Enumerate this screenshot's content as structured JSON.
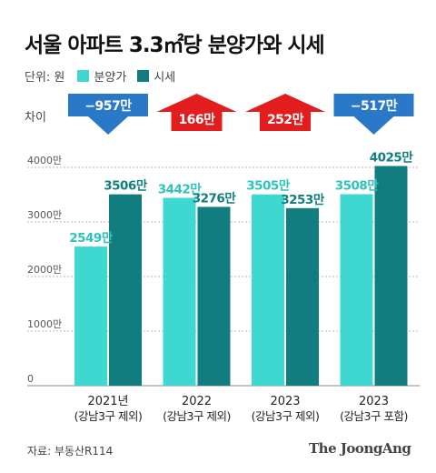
{
  "title": "서울 아파트 3.3㎡당 분양가와 시세",
  "legend": {
    "unit": "단위: 원",
    "items": [
      {
        "name": "분양가",
        "color": "#3fd8d0"
      },
      {
        "name": "시세",
        "color": "#127d7f"
      }
    ]
  },
  "diff_label": "차이",
  "source": "자료: 부동산R114",
  "logo": "The JoongAng",
  "chart_data": {
    "type": "bar",
    "ylim": [
      0,
      4600
    ],
    "yticks": [
      {
        "value": 0,
        "label": "0"
      },
      {
        "value": 1000,
        "label": "1000만"
      },
      {
        "value": 2000,
        "label": "2000만"
      },
      {
        "value": 3000,
        "label": "3000만"
      },
      {
        "value": 4000,
        "label": "4000만"
      }
    ],
    "categories": [
      {
        "line1": "2021년",
        "line2": "(강남3구 제외)"
      },
      {
        "line1": "2022",
        "line2": "(강남3구 제외)"
      },
      {
        "line1": "2023",
        "line2": "(강남3구 제외)"
      },
      {
        "line1": "2023",
        "line2": "(강남3구 포함)"
      }
    ],
    "series": [
      {
        "name": "분양가",
        "color": "#3fd8d0",
        "label_color": "#2cc3bb",
        "values": [
          2549,
          3442,
          3505,
          3508
        ],
        "labels": [
          "2549만",
          "3442만",
          "3505만",
          "3508만"
        ]
      },
      {
        "name": "시세",
        "color": "#127d7f",
        "label_color": "#127d7f",
        "values": [
          3506,
          3276,
          3253,
          4025
        ],
        "labels": [
          "3506만",
          "3276만",
          "3253만",
          "4025만"
        ]
      }
    ],
    "differences": [
      {
        "value": -957,
        "label": "−957만",
        "direction": "down",
        "color": "#2a78c8"
      },
      {
        "value": 166,
        "label": "166만",
        "direction": "up",
        "color": "#e21d1d"
      },
      {
        "value": 252,
        "label": "252만",
        "direction": "up",
        "color": "#e21d1d"
      },
      {
        "value": -517,
        "label": "−517만",
        "direction": "down",
        "color": "#2a78c8"
      }
    ]
  }
}
